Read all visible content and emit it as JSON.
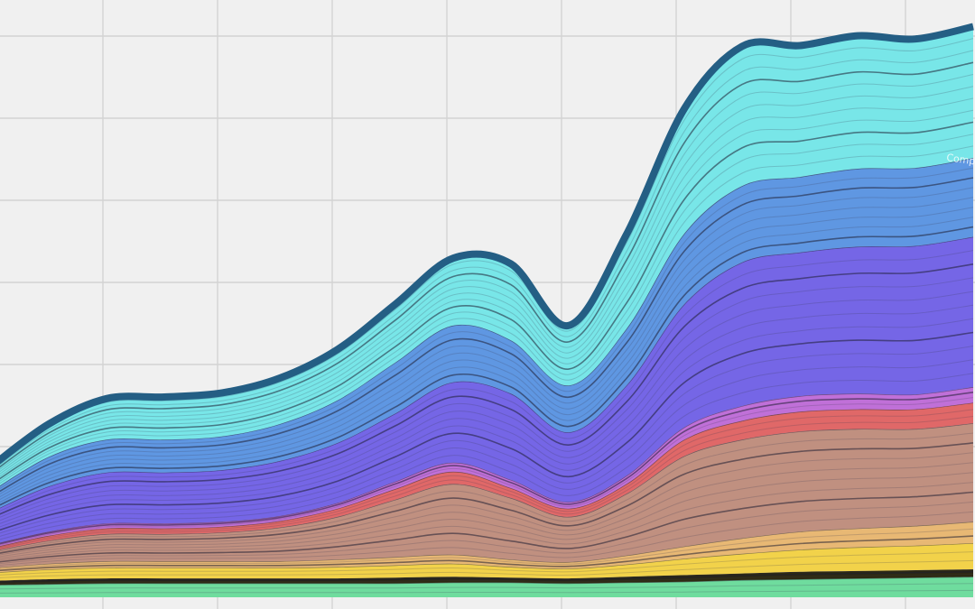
{
  "chart_data": {
    "type": "area",
    "stacked": true,
    "curve": "smooth",
    "x": [
      0,
      1,
      2,
      3,
      4,
      5,
      6,
      7,
      8,
      9,
      10,
      11,
      12,
      13,
      14,
      15,
      16,
      17
    ],
    "grid": true,
    "annotations": [
      "Comp"
    ],
    "series": [
      {
        "color": "#6fdc9e",
        "values": [
          15,
          16,
          17,
          17,
          17,
          17,
          17,
          17,
          18,
          18,
          17,
          18,
          19,
          21,
          22,
          23,
          24,
          25
        ]
      },
      {
        "color": "#2e2a12",
        "values": [
          5,
          6,
          6,
          6,
          6,
          6,
          6,
          7,
          7,
          6,
          6,
          7,
          8,
          8,
          9,
          9,
          9,
          9
        ]
      },
      {
        "color": "#f2d24a",
        "values": [
          10,
          12,
          13,
          13,
          13,
          13,
          14,
          15,
          16,
          13,
          12,
          15,
          20,
          24,
          27,
          29,
          30,
          32
        ]
      },
      {
        "color": "#e8b874",
        "values": [
          6,
          7,
          8,
          8,
          8,
          8,
          9,
          10,
          11,
          9,
          8,
          11,
          15,
          19,
          22,
          23,
          24,
          26
        ]
      },
      {
        "color": "#c09080",
        "values": [
          20,
          28,
          33,
          33,
          35,
          41,
          52,
          70,
          86,
          75,
          55,
          75,
          110,
          120,
          122,
          121,
          118,
          120
        ]
      },
      {
        "color": "#e06868",
        "values": [
          4,
          6,
          7,
          7,
          7,
          8,
          10,
          13,
          15,
          12,
          10,
          12,
          20,
          23,
          24,
          24,
          24,
          25
        ]
      },
      {
        "color": "#c070d8",
        "values": [
          4,
          5,
          6,
          6,
          6,
          6,
          7,
          9,
          11,
          10,
          8,
          10,
          15,
          18,
          19,
          19,
          18,
          19
        ]
      },
      {
        "color": "#7566e6",
        "values": [
          40,
          55,
          62,
          62,
          63,
          67,
          73,
          83,
          98,
          105,
          85,
          110,
          150,
          175,
          175,
          179,
          181,
          183
        ]
      },
      {
        "color": "#5f97e2",
        "values": [
          25,
          36,
          40,
          40,
          41,
          45,
          52,
          62,
          69,
          65,
          57,
          69,
          86,
          93,
          92,
          95,
          95,
          96
        ]
      },
      {
        "color": "#78e6e8",
        "values": [
          30,
          40,
          50,
          52,
          53,
          56,
          62,
          71,
          82,
          93,
          73,
          115,
          152,
          170,
          160,
          162,
          157,
          160
        ]
      }
    ]
  }
}
